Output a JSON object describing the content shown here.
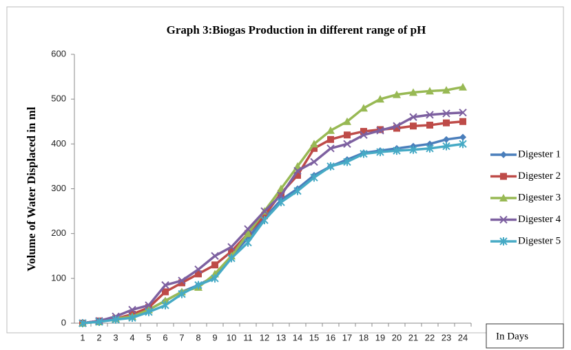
{
  "chart_data": {
    "type": "line",
    "title": "Graph 3:Biogas Production in different range of pH",
    "y_label": "Volume of Water Displaced in ml",
    "x_label": "In Days",
    "categories": [
      "1",
      "2",
      "3",
      "4",
      "5",
      "6",
      "7",
      "8",
      "9",
      "10",
      "11",
      "12",
      "13",
      "14",
      "15",
      "16",
      "17",
      "18",
      "19",
      "20",
      "21",
      "22",
      "23",
      "24"
    ],
    "ylim": [
      0,
      600
    ],
    "yticks": [
      0,
      100,
      200,
      300,
      400,
      500,
      600
    ],
    "grid": false,
    "legend": "right",
    "series": [
      {
        "name": "Digester 1",
        "color": "#4a7ebb",
        "marker": "diamond",
        "values": [
          0,
          5,
          10,
          15,
          30,
          50,
          70,
          85,
          105,
          150,
          190,
          235,
          275,
          300,
          330,
          350,
          365,
          380,
          385,
          390,
          395,
          400,
          410,
          415
        ]
      },
      {
        "name": "Digester 2",
        "color": "#be4b48",
        "marker": "square",
        "values": [
          0,
          5,
          10,
          20,
          35,
          70,
          90,
          110,
          130,
          160,
          200,
          240,
          290,
          330,
          390,
          410,
          420,
          428,
          432,
          435,
          440,
          442,
          447,
          450
        ]
      },
      {
        "name": "Digester 3",
        "color": "#98b954",
        "marker": "triangle",
        "values": [
          0,
          3,
          10,
          15,
          30,
          50,
          70,
          80,
          110,
          150,
          200,
          250,
          300,
          350,
          400,
          430,
          450,
          480,
          500,
          510,
          515,
          518,
          520,
          527
        ]
      },
      {
        "name": "Digester 4",
        "color": "#7d60a0",
        "marker": "x",
        "values": [
          0,
          5,
          15,
          30,
          40,
          85,
          95,
          120,
          150,
          170,
          210,
          250,
          285,
          340,
          360,
          390,
          400,
          420,
          430,
          440,
          460,
          465,
          468,
          470
        ]
      },
      {
        "name": "Digester 5",
        "color": "#46aac5",
        "marker": "star",
        "values": [
          0,
          3,
          8,
          12,
          25,
          40,
          65,
          85,
          100,
          145,
          180,
          230,
          270,
          295,
          325,
          350,
          360,
          378,
          382,
          385,
          387,
          390,
          395,
          400
        ]
      }
    ]
  }
}
